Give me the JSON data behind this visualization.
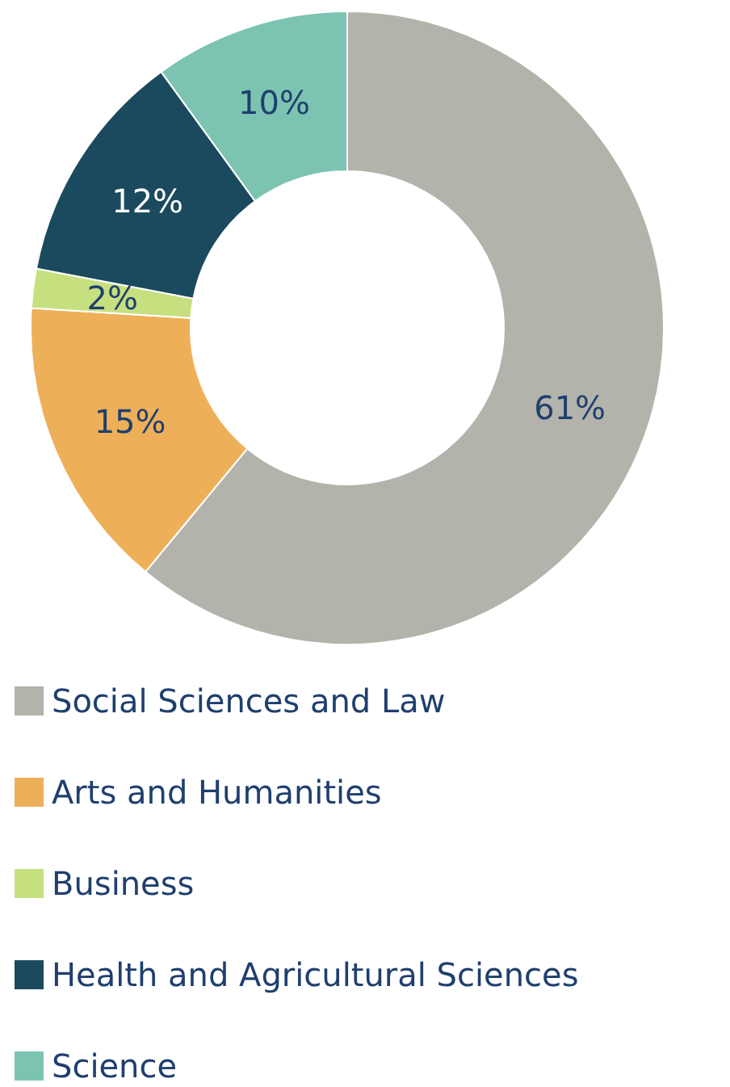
{
  "chart_data": {
    "type": "donut",
    "categories": [
      "Social Sciences and Law",
      "Arts and Humanities",
      "Business",
      "Health and Agricultural Sciences",
      "Science"
    ],
    "values": [
      61,
      15,
      2,
      12,
      10
    ],
    "colors": [
      "#b3b3ab",
      "#edb059",
      "#c6e07f",
      "#1b4a5e",
      "#7cc4b1"
    ],
    "value_labels": [
      "61%",
      "15%",
      "2%",
      "12%",
      "10%"
    ],
    "legend": "bottom"
  }
}
